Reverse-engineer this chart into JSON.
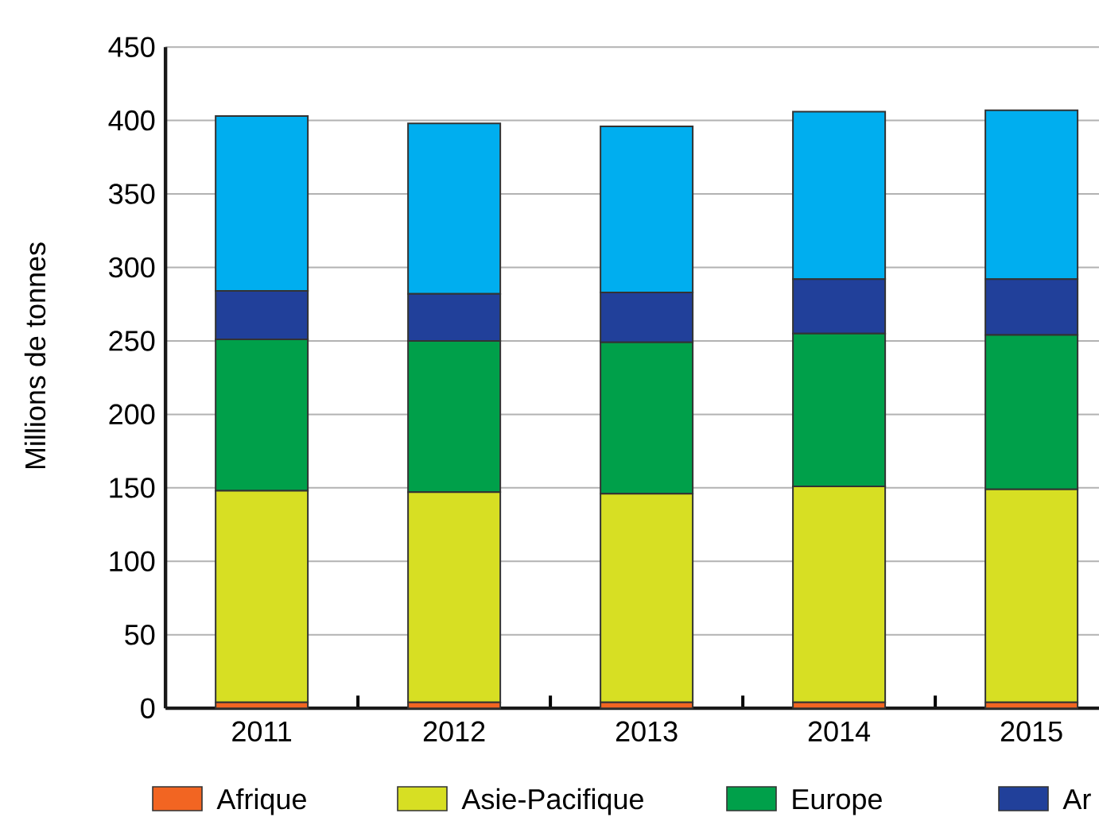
{
  "chart_data": {
    "type": "bar",
    "stacked": true,
    "ylabel": "Millions de tonnes",
    "categories": [
      "2011",
      "2012",
      "2013",
      "2014",
      "2015"
    ],
    "series": [
      {
        "name": "Afrique",
        "color": "#f26522",
        "values": [
          4,
          4,
          4,
          4,
          4
        ]
      },
      {
        "name": "Asie-Pacifique",
        "color": "#d7df23",
        "values": [
          144,
          143,
          142,
          147,
          145
        ]
      },
      {
        "name": "Europe",
        "color": "#00a04a",
        "values": [
          103,
          103,
          103,
          104,
          105
        ]
      },
      {
        "name": "Ar",
        "color": "#21409a",
        "values": [
          33,
          32,
          34,
          37,
          38
        ]
      },
      {
        "color": "#00aeef",
        "values": [
          119,
          116,
          113,
          114,
          115
        ]
      }
    ],
    "ylim": [
      0,
      450
    ],
    "yticks": [
      0,
      50,
      100,
      150,
      200,
      250,
      300,
      350,
      400,
      450
    ],
    "grid": "y",
    "legend": "bottom"
  }
}
